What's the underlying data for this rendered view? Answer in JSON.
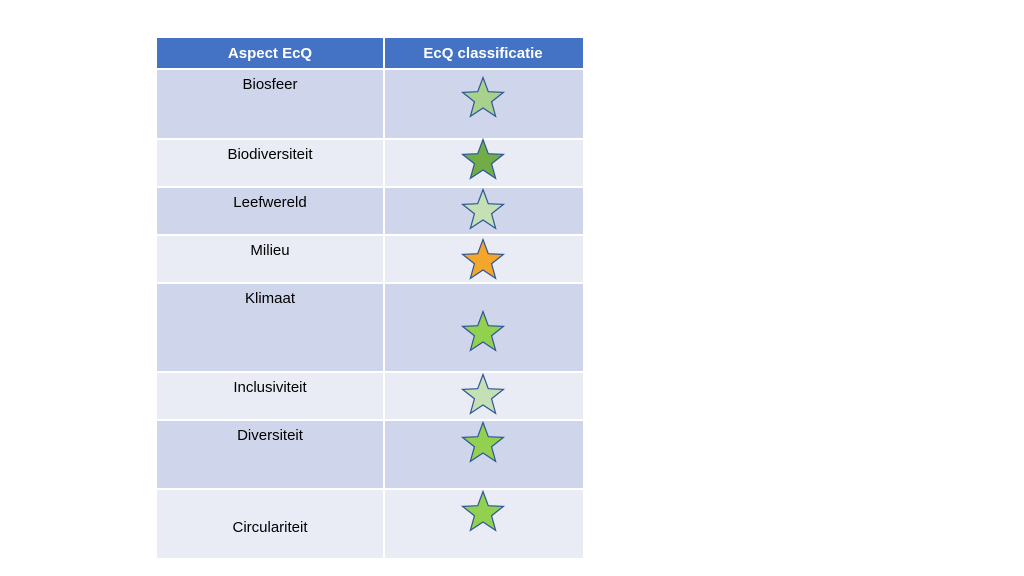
{
  "table": {
    "headers": {
      "aspect": "Aspect EcQ",
      "classification": "EcQ classificatie"
    },
    "rows": [
      {
        "label": "Biosfeer",
        "star_color": "#a9d18e"
      },
      {
        "label": "Biodiversiteit",
        "star_color": "#70ad47"
      },
      {
        "label": "Leefwereld",
        "star_color": "#c5e0b4"
      },
      {
        "label": "Milieu",
        "star_color": "#f4a62a"
      },
      {
        "label": "Klimaat",
        "star_color": "#92d050"
      },
      {
        "label": "Inclusiviteit",
        "star_color": "#c5e0b4"
      },
      {
        "label": "Diversiteit",
        "star_color": "#92d050"
      },
      {
        "label": "Circulariteit",
        "star_color": "#92d050"
      }
    ],
    "star_outline_color": "#2f5597",
    "icon": "star-icon"
  }
}
